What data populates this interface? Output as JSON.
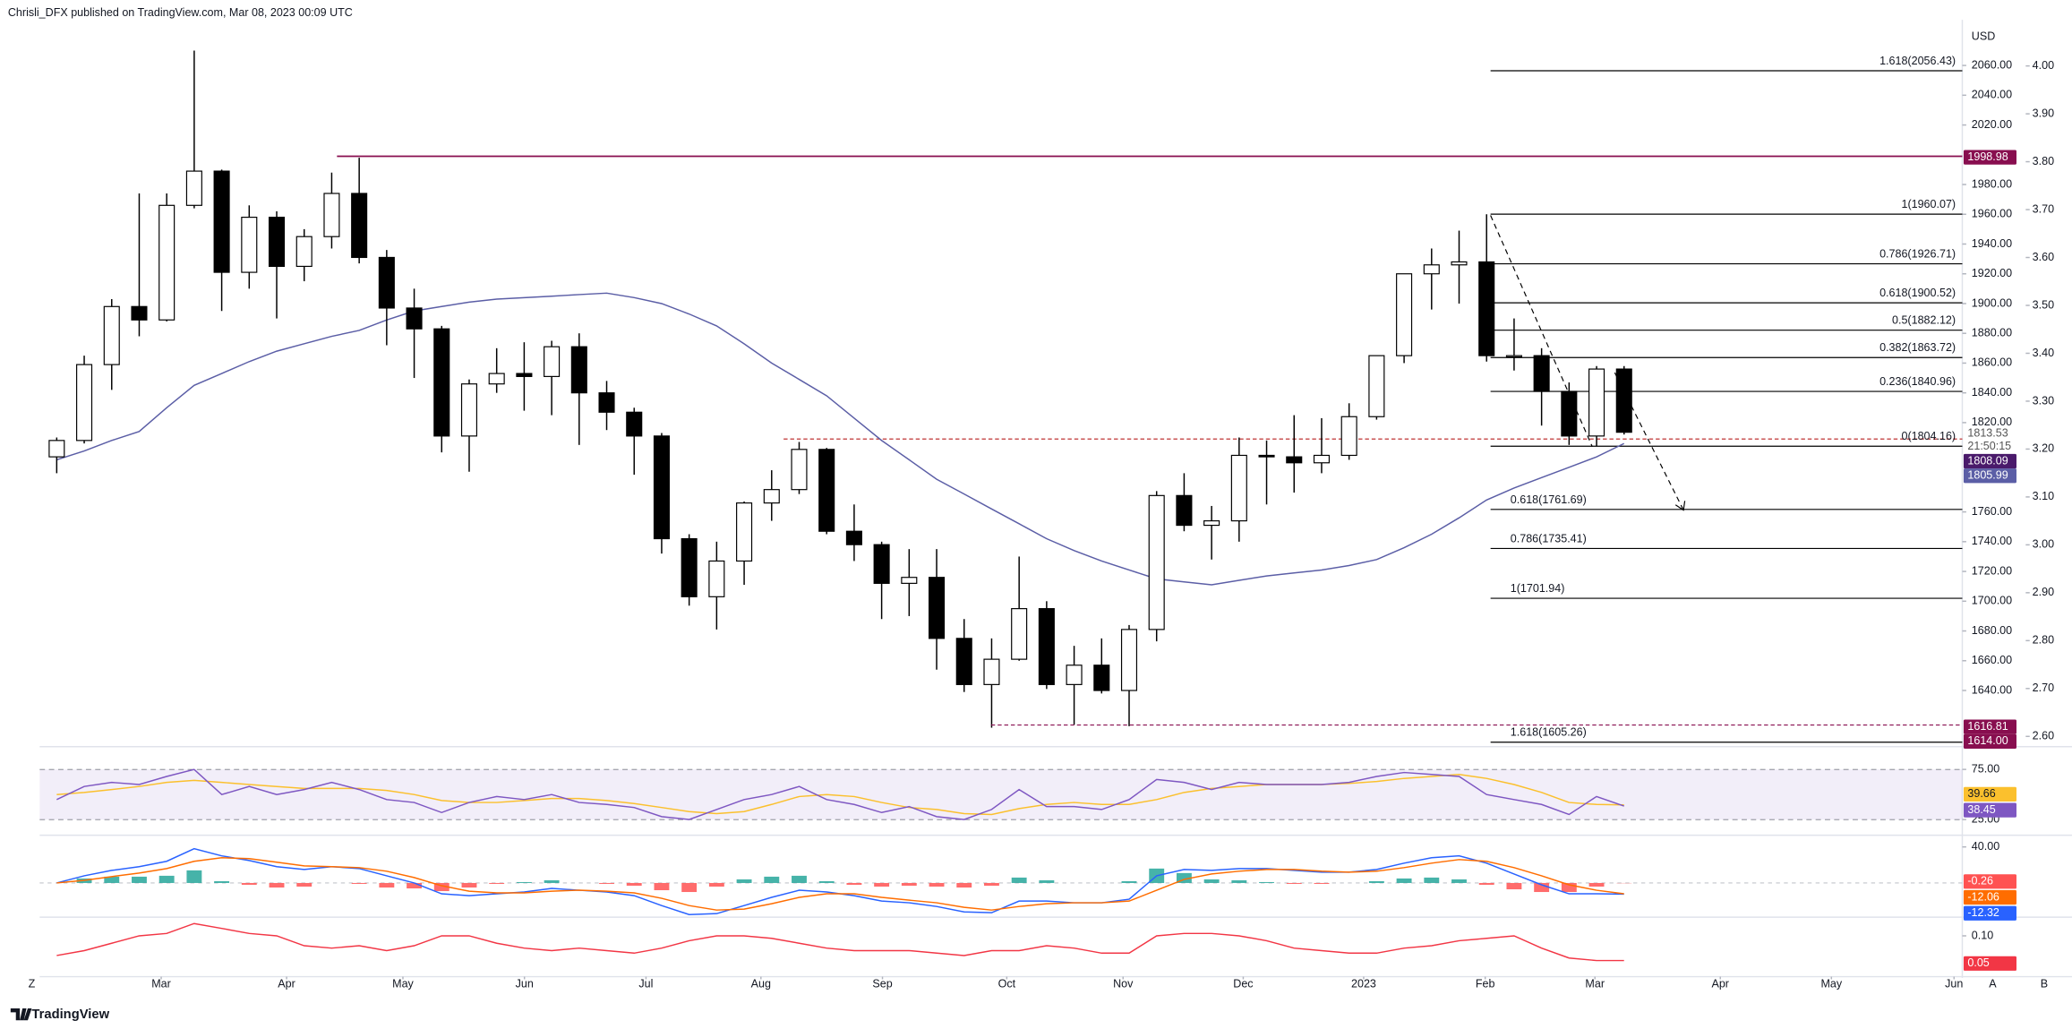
{
  "caption": "Chrisli_DFX published on TradingView.com, Mar 08, 2023 00:09 UTC",
  "footer": "TradingView",
  "buttons": [
    "Z",
    "A",
    "B"
  ],
  "chart_data": [
    {
      "type": "candlestick",
      "y_label": "USD",
      "categories": [
        null,
        null,
        null,
        null,
        null,
        null,
        null,
        null,
        null,
        null,
        null,
        null,
        null,
        null,
        null,
        null,
        null,
        null,
        null,
        null,
        null,
        null,
        null,
        null,
        null,
        null,
        null,
        null,
        null,
        null,
        null,
        null,
        null,
        null,
        null,
        null,
        null,
        null,
        null,
        null,
        null,
        null,
        null,
        null,
        null,
        null,
        null,
        null,
        null,
        null,
        null,
        null,
        null,
        null,
        null,
        null,
        null,
        null
      ],
      "open": [
        1797,
        1808,
        1859,
        1898,
        1889,
        1966,
        1989,
        1921,
        1958,
        1925,
        1945,
        1974,
        1931,
        1897,
        1883,
        1811,
        1846,
        1853,
        1851,
        1871,
        1840,
        1827,
        1811,
        1742,
        1703,
        1727,
        1766,
        1775,
        1802,
        1747,
        1738,
        1712,
        1716,
        1675,
        1644,
        1661,
        1695,
        1644,
        1657,
        1640,
        1681,
        1771,
        1751,
        1754,
        1798,
        1797,
        1793,
        1798,
        1824,
        1865,
        1920,
        1926,
        1928,
        1865,
        1865,
        1841,
        1811,
        1856
      ],
      "high": [
        1810,
        1865,
        1903,
        1974,
        1974,
        2070,
        1990,
        1966,
        1962,
        1950,
        1988,
        1998,
        1936,
        1910,
        1885,
        1849,
        1870,
        1874,
        1875,
        1880,
        1848,
        1830,
        1813,
        1745,
        1740,
        1767,
        1788,
        1807,
        1803,
        1765,
        1740,
        1735,
        1735,
        1688,
        1675,
        1730,
        1700,
        1670,
        1675,
        1684,
        1774,
        1786,
        1764,
        1810,
        1808,
        1825,
        1823,
        1833,
        1865,
        1920,
        1937,
        1949,
        1960,
        1890,
        1870,
        1847,
        1858,
        1858
      ],
      "low": [
        1786,
        1806,
        1842,
        1878,
        1888,
        1964,
        1895,
        1910,
        1890,
        1915,
        1937,
        1927,
        1872,
        1850,
        1800,
        1787,
        1840,
        1828,
        1825,
        1805,
        1815,
        1785,
        1732,
        1697,
        1681,
        1711,
        1754,
        1772,
        1745,
        1727,
        1688,
        1690,
        1654,
        1639,
        1615,
        1660,
        1641,
        1617,
        1638,
        1616,
        1673,
        1747,
        1728,
        1740,
        1765,
        1773,
        1786,
        1795,
        1822,
        1860,
        1896,
        1900,
        1861,
        1855,
        1818,
        1805,
        1804,
        1812
      ],
      "close": [
        1808,
        1859,
        1898,
        1889,
        1966,
        1989,
        1921,
        1958,
        1925,
        1945,
        1974,
        1931,
        1897,
        1883,
        1811,
        1846,
        1853,
        1851,
        1871,
        1840,
        1827,
        1811,
        1742,
        1703,
        1727,
        1766,
        1775,
        1802,
        1747,
        1738,
        1712,
        1716,
        1675,
        1644,
        1661,
        1695,
        1644,
        1657,
        1640,
        1681,
        1771,
        1751,
        1754,
        1798,
        1797,
        1793,
        1798,
        1824,
        1865,
        1920,
        1926,
        1928,
        1865,
        1865,
        1841,
        1811,
        1856,
        1813.53
      ],
      "up_color": "#ffffff",
      "down_color": "#000000",
      "ma": {
        "color": "#5b5ea6",
        "values": [
          1795,
          1801,
          1808,
          1814,
          1830,
          1845,
          1853,
          1861,
          1868,
          1873,
          1878,
          1882,
          1889,
          1895,
          1898,
          1901,
          1903,
          1904,
          1905,
          1906,
          1907,
          1904,
          1900,
          1893,
          1885,
          1873,
          1860,
          1849,
          1838,
          1823,
          1808,
          1795,
          1782,
          1772,
          1762,
          1752,
          1742,
          1734,
          1727,
          1721,
          1715,
          1713,
          1711,
          1714,
          1717,
          1719,
          1721,
          1724,
          1728,
          1736,
          1745,
          1756,
          1768,
          1776,
          1783,
          1790,
          1797,
          1805.99
        ]
      },
      "xlim": [
        -0.62,
        69.3
      ],
      "xticks": [
        {
          "value": 3.8,
          "label": "Mar"
        },
        {
          "value": 8.36,
          "label": "Apr"
        },
        {
          "value": 12.59,
          "label": "May"
        },
        {
          "value": 17.01,
          "label": "Jun"
        },
        {
          "value": 21.43,
          "label": "Jul"
        },
        {
          "value": 25.61,
          "label": "Aug"
        },
        {
          "value": 30.03,
          "label": "Sep"
        },
        {
          "value": 34.55,
          "label": "Oct"
        },
        {
          "value": 38.78,
          "label": "Nov"
        },
        {
          "value": 43.15,
          "label": "Dec"
        },
        {
          "value": 47.53,
          "label": "2023"
        },
        {
          "value": 51.95,
          "label": "Feb"
        },
        {
          "value": 55.94,
          "label": "Mar"
        },
        {
          "value": 60.5,
          "label": "Apr"
        },
        {
          "value": 64.54,
          "label": "May"
        },
        {
          "value": 69.0,
          "label": "Jun"
        }
      ],
      "ylim": [
        1604,
        2088
      ],
      "yticks": [
        {
          "value": 2060,
          "label": "2060.00"
        },
        {
          "value": 2040,
          "label": "2040.00"
        },
        {
          "value": 2020,
          "label": "2020.00"
        },
        {
          "value": 1980,
          "label": "1980.00"
        },
        {
          "value": 1960,
          "label": "1960.00"
        },
        {
          "value": 1940,
          "label": "1940.00"
        },
        {
          "value": 1920,
          "label": "1920.00"
        },
        {
          "value": 1900,
          "label": "1900.00"
        },
        {
          "value": 1880,
          "label": "1880.00"
        },
        {
          "value": 1860,
          "label": "1860.00"
        },
        {
          "value": 1840,
          "label": "1840.00"
        },
        {
          "value": 1820,
          "label": "1820.00"
        },
        {
          "value": 1760,
          "label": "1760.00"
        },
        {
          "value": 1740,
          "label": "1740.00"
        },
        {
          "value": 1720,
          "label": "1720.00"
        },
        {
          "value": 1700,
          "label": "1700.00"
        },
        {
          "value": 1680,
          "label": "1680.00"
        },
        {
          "value": 1660,
          "label": "1660.00"
        },
        {
          "value": 1640,
          "label": "1640.00"
        }
      ],
      "y2lim": [
        2.584,
        4.088
      ],
      "y2ticks": [
        {
          "value": 4.0,
          "label": "4.00"
        },
        {
          "value": 3.9,
          "label": "3.90"
        },
        {
          "value": 3.8,
          "label": "3.80"
        },
        {
          "value": 3.7,
          "label": "3.70"
        },
        {
          "value": 3.6,
          "label": "3.60"
        },
        {
          "value": 3.5,
          "label": "3.50"
        },
        {
          "value": 3.4,
          "label": "3.40"
        },
        {
          "value": 3.3,
          "label": "3.30"
        },
        {
          "value": 3.2,
          "label": "3.20"
        },
        {
          "value": 3.1,
          "label": "3.10"
        },
        {
          "value": 3.0,
          "label": "3.00"
        },
        {
          "value": 2.9,
          "label": "2.90"
        },
        {
          "value": 2.8,
          "label": "2.80"
        },
        {
          "value": 2.7,
          "label": "2.70"
        },
        {
          "value": 2.6,
          "label": "2.60"
        }
      ],
      "fib_levels": [
        {
          "label": "1.618(2056.43)",
          "value": 2056.43
        },
        {
          "label": "1(1960.07)",
          "value": 1960.07
        },
        {
          "label": "0.786(1926.71)",
          "value": 1926.71
        },
        {
          "label": "0.618(1900.52)",
          "value": 1900.52
        },
        {
          "label": "0.5(1882.12)",
          "value": 1882.12
        },
        {
          "label": "0.382(1863.72)",
          "value": 1863.72
        },
        {
          "label": "0.236(1840.96)",
          "value": 1840.96
        },
        {
          "label": "0(1804.16)",
          "value": 1804.16
        },
        {
          "label": "0.618(1761.69)",
          "value": 1761.69
        },
        {
          "label": "0.786(1735.41)",
          "value": 1735.41
        },
        {
          "label": "1(1701.94)",
          "value": 1701.94
        },
        {
          "label": "1.618(1605.26)",
          "value": 1605.26
        }
      ],
      "price_labels": [
        {
          "value": 1998.98,
          "color": "#880e4f",
          "line": "solid"
        },
        {
          "value": 1813.53,
          "color": "#555555",
          "box": false
        },
        {
          "value": 1808.09,
          "color": "#4a1a6b"
        },
        {
          "value": 1805.99,
          "color": "#5b5ea6"
        },
        {
          "value": 1616.81,
          "color": "#880e4f",
          "line": "dashed"
        },
        {
          "value": 1614,
          "label": "1614.00",
          "color": "#880e4f"
        }
      ],
      "countdown": "21:50:15",
      "dashed_level": 1809
    },
    {
      "type": "line",
      "series": [
        {
          "color": "#7e57c2",
          "values": [
            45,
            58,
            62,
            60,
            68,
            75,
            50,
            58,
            50,
            55,
            62,
            55,
            45,
            42,
            32,
            42,
            48,
            45,
            50,
            42,
            40,
            37,
            28,
            25,
            35,
            45,
            50,
            58,
            45,
            40,
            32,
            38,
            28,
            25,
            35,
            55,
            38,
            38,
            35,
            45,
            65,
            62,
            55,
            62,
            60,
            60,
            60,
            62,
            68,
            72,
            70,
            68,
            50,
            45,
            40,
            30,
            48,
            38.45
          ]
        },
        {
          "color": "#fbc02d",
          "values": [
            50,
            52,
            55,
            58,
            62,
            64,
            62,
            60,
            58,
            56,
            56,
            56,
            54,
            50,
            44,
            42,
            42,
            44,
            46,
            46,
            44,
            41,
            37,
            33,
            31,
            33,
            40,
            48,
            50,
            48,
            42,
            37,
            35,
            31,
            30,
            36,
            40,
            42,
            40,
            40,
            45,
            52,
            56,
            58,
            60,
            60,
            60,
            61,
            63,
            66,
            68,
            70,
            66,
            60,
            52,
            42,
            40,
            39.66
          ]
        }
      ],
      "ylim": [
        12,
        95
      ],
      "yticks": [
        {
          "value": 75,
          "label": "75.00"
        },
        {
          "value": 25,
          "label": "25.00"
        }
      ]
    },
    {
      "type": "macd",
      "series": [
        {
          "color": "#2962ff",
          "values": [
            0,
            8,
            14,
            18,
            24,
            38,
            30,
            25,
            18,
            15,
            18,
            16,
            8,
            0,
            -12,
            -14,
            -12,
            -10,
            -6,
            -8,
            -10,
            -14,
            -25,
            -35,
            -34,
            -25,
            -16,
            -8,
            -10,
            -14,
            -20,
            -22,
            -26,
            -32,
            -33,
            -20,
            -20,
            -22,
            -22,
            -18,
            8,
            15,
            14,
            16,
            16,
            14,
            12,
            12,
            15,
            22,
            28,
            30,
            22,
            10,
            -2,
            -12,
            -12,
            -12.32
          ]
        },
        {
          "color": "#ff6d00",
          "values": [
            0,
            3,
            7,
            11,
            16,
            24,
            28,
            27,
            23,
            19,
            18,
            17,
            13,
            6,
            -3,
            -9,
            -11,
            -11,
            -9,
            -8,
            -9,
            -11,
            -17,
            -25,
            -30,
            -29,
            -23,
            -16,
            -12,
            -12,
            -16,
            -19,
            -22,
            -27,
            -30,
            -26,
            -23,
            -22,
            -22,
            -20,
            -8,
            4,
            10,
            13,
            15,
            15,
            13,
            12,
            13,
            17,
            22,
            26,
            24,
            17,
            8,
            -2,
            -8,
            -12.06
          ]
        }
      ],
      "histogram": {
        "up_color": "#26a69a",
        "down_color": "#ff5252",
        "values": [
          0,
          5,
          7,
          7,
          8,
          14,
          2,
          -2,
          -5,
          -4,
          0,
          -1,
          -5,
          -6,
          -9,
          -5,
          -1,
          1,
          3,
          0,
          -1,
          -3,
          -8,
          -10,
          -4,
          4,
          7,
          8,
          2,
          -2,
          -4,
          -3,
          -4,
          -5,
          -3,
          6,
          3,
          0,
          0,
          2,
          16,
          11,
          4,
          3,
          1,
          -1,
          -1,
          0,
          2,
          5,
          6,
          4,
          -2,
          -7,
          -10,
          -10,
          -4,
          -0.26
        ]
      },
      "ylim": [
        -35,
        50
      ],
      "yticks": [
        {
          "value": 40,
          "label": "40.00"
        }
      ]
    },
    {
      "type": "line",
      "series": [
        {
          "color": "#f23645",
          "values": [
            0.06,
            0.07,
            0.085,
            0.1,
            0.105,
            0.125,
            0.115,
            0.105,
            0.1,
            0.08,
            0.075,
            0.08,
            0.07,
            0.08,
            0.1,
            0.1,
            0.085,
            0.075,
            0.07,
            0.075,
            0.07,
            0.065,
            0.075,
            0.09,
            0.1,
            0.1,
            0.095,
            0.085,
            0.075,
            0.07,
            0.07,
            0.07,
            0.065,
            0.06,
            0.07,
            0.07,
            0.08,
            0.075,
            0.065,
            0.065,
            0.1,
            0.105,
            0.105,
            0.1,
            0.09,
            0.075,
            0.07,
            0.065,
            0.065,
            0.075,
            0.08,
            0.09,
            0.095,
            0.1,
            0.075,
            0.055,
            0.05,
            0.05
          ]
        }
      ],
      "ylim": [
        0.0225,
        0.1325
      ],
      "yticks": [
        {
          "value": 0.1,
          "label": "0.10"
        }
      ]
    }
  ]
}
